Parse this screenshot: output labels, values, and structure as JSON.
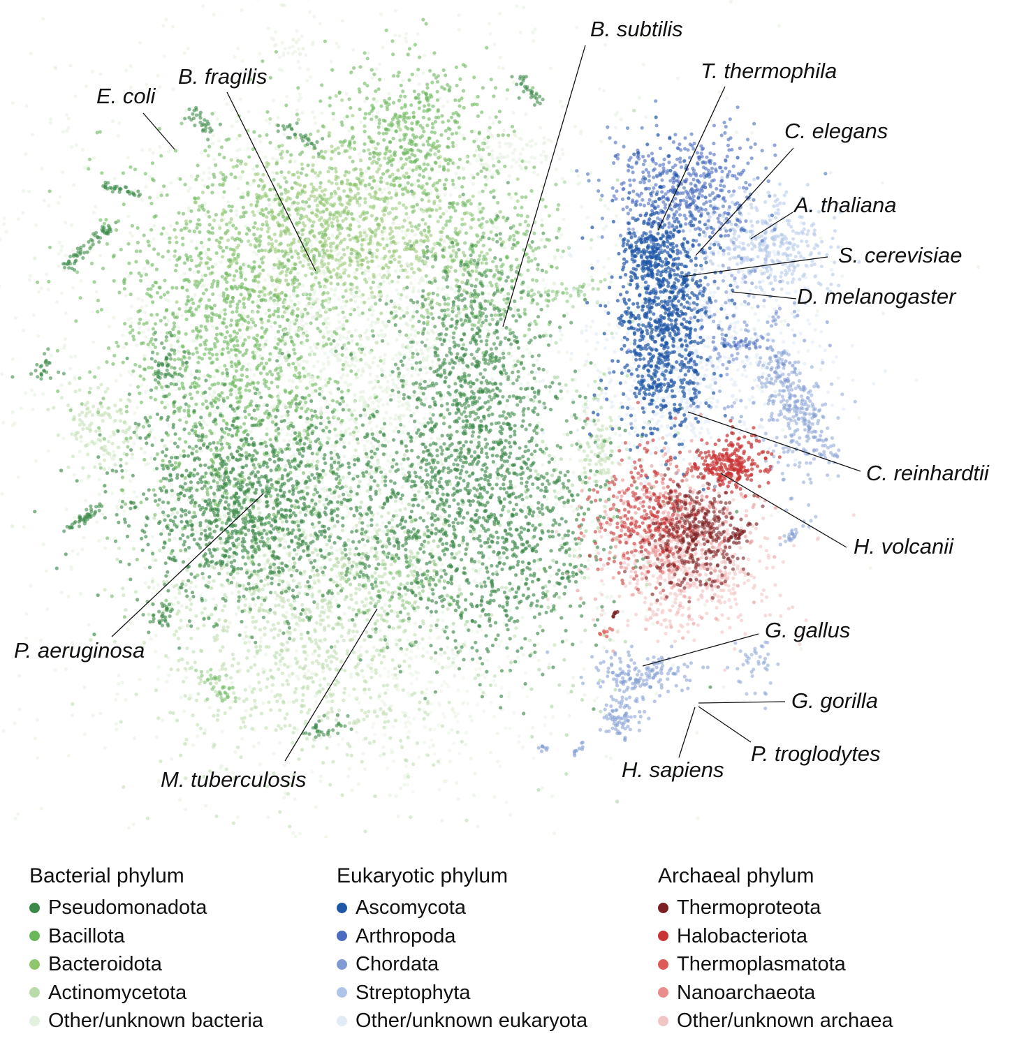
{
  "chart_data": {
    "type": "scatter",
    "title": "",
    "xlabel": "",
    "ylabel": "",
    "grid": false,
    "legend_placement": "bottom",
    "legend_groups": [
      {
        "title": "Bacterial phylum",
        "items": [
          {
            "name": "Pseudomonadota",
            "color": "#3c8a4a"
          },
          {
            "name": "Bacillota",
            "color": "#6ab85c"
          },
          {
            "name": "Bacteroidota",
            "color": "#8fc56b"
          },
          {
            "name": "Actinomycetota",
            "color": "#b9dbaa"
          },
          {
            "name": "Other/unknown bacteria",
            "color": "#e3f0dd"
          }
        ]
      },
      {
        "title": "Eukaryotic phylum",
        "items": [
          {
            "name": "Ascomycota",
            "color": "#1f57a6"
          },
          {
            "name": "Arthropoda",
            "color": "#4a6cc0"
          },
          {
            "name": "Chordata",
            "color": "#7f9bd2"
          },
          {
            "name": "Streptophyta",
            "color": "#aec4e8"
          },
          {
            "name": "Other/unknown eukaryota",
            "color": "#e1ebf7"
          }
        ]
      },
      {
        "title": "Archaeal phylum",
        "items": [
          {
            "name": "Thermoproteota",
            "color": "#7b1f22"
          },
          {
            "name": "Halobacteriota",
            "color": "#c93333"
          },
          {
            "name": "Thermoplasmatota",
            "color": "#de5a56"
          },
          {
            "name": "Nanoarchaeota",
            "color": "#e88d8c"
          },
          {
            "name": "Other/unknown archaea",
            "color": "#f3c4c4"
          }
        ]
      }
    ],
    "annotations": [
      {
        "name": "B. subtilis"
      },
      {
        "name": "T. thermophila"
      },
      {
        "name": "E. coli"
      },
      {
        "name": "B. fragilis"
      },
      {
        "name": "C. elegans"
      },
      {
        "name": "A. thaliana"
      },
      {
        "name": "S. cerevisiae"
      },
      {
        "name": "D. melanogaster"
      },
      {
        "name": "C. reinhardtii"
      },
      {
        "name": "H. volcanii"
      },
      {
        "name": "P. aeruginosa"
      },
      {
        "name": "G. gallus"
      },
      {
        "name": "G. gorilla"
      },
      {
        "name": "P. troglodytes"
      },
      {
        "name": "H. sapiens"
      },
      {
        "name": "M. tuberculosis"
      }
    ]
  }
}
